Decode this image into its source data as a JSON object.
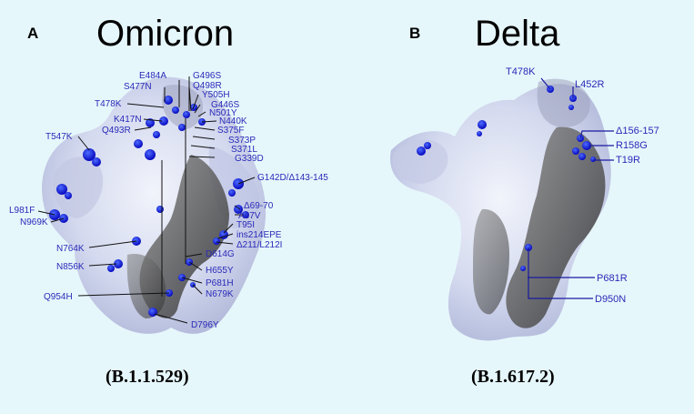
{
  "panels": [
    {
      "letter": "A",
      "title": "Omicron",
      "lineage": "(B.1.1.529)",
      "mutations": [
        "E484A",
        "S477N",
        "T478K",
        "K417N",
        "Q493R",
        "T547K",
        "G496S",
        "Q498R",
        "Y505H",
        "G446S",
        "N501Y",
        "N440K",
        "S375F",
        "S373P",
        "S371L",
        "G339D",
        "G142D/Δ143-145",
        "Δ69-70",
        "A67V",
        "T95I",
        "ins214EPE",
        "Δ211/L212I",
        "D614G",
        "L981F",
        "N969K",
        "N764K",
        "N856K",
        "H655Y",
        "P681H",
        "N679K",
        "Q954H",
        "D796Y"
      ]
    },
    {
      "letter": "B",
      "title": "Delta",
      "lineage": "(B.1.617.2)",
      "mutations": [
        "T478K",
        "L452R",
        "Δ156-157",
        "R158G",
        "T19R",
        "P681R",
        "D950N"
      ]
    }
  ],
  "colors": {
    "background": "#e6f7fb",
    "label": "#2a2ab8",
    "mutation_site": "#0a0ad8"
  }
}
